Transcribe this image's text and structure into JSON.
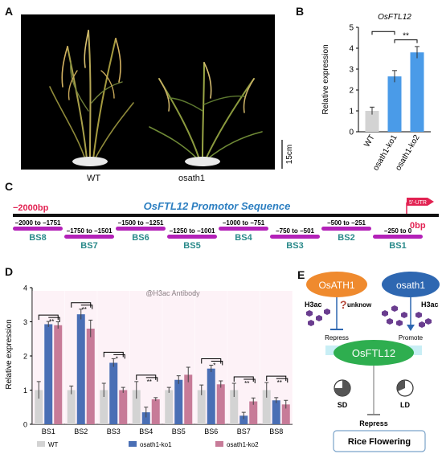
{
  "labels": {
    "a": "A",
    "b": "B",
    "c": "C",
    "d": "D",
    "e": "E"
  },
  "panel_a": {
    "captions": [
      "WT",
      "osath1"
    ],
    "scale_bar": "15cm"
  },
  "panel_b": {
    "chart_data": {
      "type": "bar",
      "title": "OsFTL12",
      "ylabel": "Relative expression",
      "ylim": [
        0,
        5
      ],
      "yticks": [
        0,
        1,
        2,
        3,
        4,
        5
      ],
      "categories": [
        "WT",
        "osath1-ko1",
        "osath1-ko2"
      ],
      "values": [
        1.0,
        2.65,
        3.8
      ],
      "errors": [
        0.18,
        0.28,
        0.28
      ],
      "colors": [
        "#d3d3d3",
        "#4a9be8",
        "#4a9be8"
      ],
      "significance": [
        {
          "from": 0,
          "to": 1,
          "label": ""
        },
        {
          "from": 1,
          "to": 2,
          "label": "**"
        }
      ]
    }
  },
  "panel_c": {
    "title": "OsFTL12 Promotor Sequence",
    "start_label": "−2000bp",
    "end_label": "0bp",
    "utr_label": "5'-UTR",
    "sites": [
      {
        "range": "−2000 to −1751",
        "name": "BS8"
      },
      {
        "range": "−1750 to −1501",
        "name": "BS7"
      },
      {
        "range": "−1500 to −1251",
        "name": "BS6"
      },
      {
        "range": "−1250 to −1001",
        "name": "BS5"
      },
      {
        "range": "−1000 to −751",
        "name": "BS4"
      },
      {
        "range": "−750 to −501",
        "name": "BS3"
      },
      {
        "range": "−500 to −251",
        "name": "BS2"
      },
      {
        "range": "−250 to 0",
        "name": "BS1"
      }
    ]
  },
  "panel_d": {
    "chart_data": {
      "type": "bar",
      "annotation": "@H3ac Antibody",
      "ylabel": "Relative expression",
      "ylim": [
        0,
        4
      ],
      "yticks": [
        0,
        1,
        2,
        3,
        4
      ],
      "categories": [
        "BS1",
        "BS2",
        "BS3",
        "BS4",
        "BS5",
        "BS6",
        "BS7",
        "BS8"
      ],
      "series": [
        {
          "name": "WT",
          "color": "#d3d3d3",
          "values": [
            1.0,
            1.0,
            1.0,
            1.0,
            1.0,
            1.0,
            1.0,
            1.0
          ],
          "errors": [
            0.25,
            0.12,
            0.2,
            0.25,
            0.08,
            0.15,
            0.2,
            0.22
          ]
        },
        {
          "name": "osath1-ko1",
          "color": "#4a6fb5",
          "values": [
            2.93,
            3.22,
            1.8,
            0.35,
            1.3,
            1.63,
            0.25,
            0.7
          ],
          "errors": [
            0.08,
            0.15,
            0.12,
            0.15,
            0.12,
            0.1,
            0.1,
            0.08
          ]
        },
        {
          "name": "osath1-ko2",
          "color": "#c77b98",
          "values": [
            2.9,
            2.8,
            1.0,
            0.73,
            1.45,
            1.17,
            0.67,
            0.58
          ],
          "errors": [
            0.1,
            0.25,
            0.08,
            0.05,
            0.22,
            0.1,
            0.1,
            0.12
          ]
        }
      ],
      "significance": [
        "**",
        "**",
        "*",
        "**",
        "",
        "*",
        "**",
        "**"
      ]
    }
  },
  "panel_e": {
    "osath1_wt": "OsATH1",
    "osath1_mut": "osath1",
    "h3ac_left": "H3ac",
    "h3ac_right": "H3ac",
    "unknow": "unknow",
    "question": "?",
    "repress": "Repress",
    "promote": "Promote",
    "target": "OsFTL12",
    "sd": "SD",
    "ld": "LD",
    "repress_bottom": "Repress",
    "outcome": "Rice Flowering"
  }
}
